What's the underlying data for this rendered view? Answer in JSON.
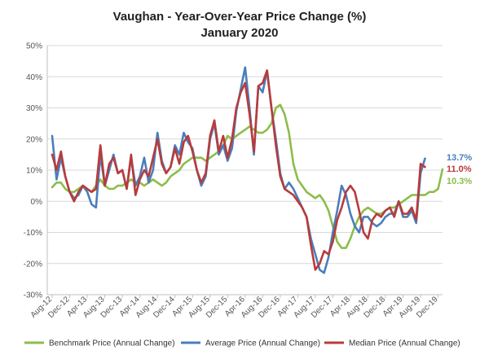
{
  "chart_data": {
    "type": "line",
    "title": "Vaughan - Year-Over-Year Price Change (%)",
    "subtitle": "January 2020",
    "xlabel": "",
    "ylabel": "",
    "ylim": [
      -30,
      50
    ],
    "y_ticks": [
      "-30%",
      "-20%",
      "-10%",
      "0%",
      "10%",
      "20%",
      "30%",
      "40%",
      "50%"
    ],
    "x_tick_labels": [
      "Aug-12",
      "Dec-12",
      "Apr-13",
      "Aug-13",
      "Dec-13",
      "Apr-14",
      "Aug-14",
      "Dec-14",
      "Apr-15",
      "Aug-15",
      "Dec-15",
      "Apr-16",
      "Aug-16",
      "Dec-16",
      "Apr-17",
      "Aug-17",
      "Dec-17",
      "Apr-18",
      "Aug-18",
      "Dec-18",
      "Apr-19",
      "Aug-19",
      "Dec-19"
    ],
    "grid": "horizontal",
    "legend_position": "bottom",
    "series": [
      {
        "name": "Benchmark Price (Annual Change)",
        "color": "#8dbd4b",
        "values": [
          4.5,
          6,
          6,
          4,
          3,
          3,
          4,
          5,
          4,
          3,
          5,
          7,
          5,
          4,
          4,
          5,
          5,
          6,
          7,
          6,
          6,
          5,
          6,
          7,
          6,
          5,
          6,
          8,
          9,
          10,
          12,
          13,
          14,
          14,
          14,
          13,
          14,
          15,
          16,
          18,
          21,
          20,
          21,
          22,
          23,
          24,
          23,
          22,
          22,
          23,
          25,
          30,
          31,
          28,
          22,
          12,
          7,
          5,
          3,
          2,
          1,
          2,
          0,
          -3,
          -8,
          -13,
          -15,
          -15,
          -12,
          -8,
          -5,
          -3,
          -2,
          -3,
          -4,
          -4,
          -3,
          -2,
          -2,
          -1,
          0,
          1,
          2,
          2,
          2,
          2,
          3,
          3,
          4,
          10.3
        ],
        "end_label": "10.3%"
      },
      {
        "name": "Average Price (Annual Change)",
        "color": "#4a7ebb",
        "values": [
          21,
          7,
          14,
          8,
          3,
          1,
          2,
          5,
          3,
          -1,
          -2,
          15,
          5,
          10,
          15,
          9,
          10,
          4,
          14,
          5,
          8,
          14,
          6,
          10,
          22,
          13,
          9,
          11,
          18,
          15,
          22,
          19,
          17,
          10,
          5,
          8,
          20,
          25,
          15,
          18,
          13,
          17,
          29,
          36,
          43,
          30,
          15,
          37,
          35,
          42,
          30,
          20,
          9,
          4,
          6,
          4,
          1,
          -2,
          -5,
          -12,
          -17,
          -22,
          -23,
          -18,
          -10,
          -3,
          5,
          2,
          -4,
          -8,
          -10,
          -5,
          -5,
          -7,
          -8,
          -7,
          -5,
          -4,
          -4,
          0,
          -5,
          -5,
          -3,
          -7,
          9,
          13.7
        ],
        "end_label": "13.7%"
      },
      {
        "name": "Median Price (Annual Change)",
        "color": "#b83b3b",
        "values": [
          15,
          10,
          16,
          8,
          3,
          0,
          3,
          5,
          4,
          3,
          4,
          18,
          5,
          12,
          14,
          9,
          10,
          4,
          15,
          2,
          7,
          10,
          8,
          14,
          20,
          12,
          9,
          11,
          17,
          12,
          19,
          21,
          16,
          10,
          6,
          9,
          21,
          26,
          16,
          21,
          14,
          20,
          30,
          35,
          38,
          28,
          16,
          37,
          38,
          42,
          30,
          18,
          8,
          4,
          3,
          2,
          0,
          -2,
          -5,
          -14,
          -22,
          -20,
          -16,
          -17,
          -13,
          -6,
          -2,
          3,
          5,
          3,
          -3,
          -10,
          -12,
          -6,
          -4,
          -5,
          -3,
          -2,
          -5,
          0,
          -4,
          -4,
          -2,
          -6,
          12,
          11.0
        ],
        "end_label": "11.0%"
      }
    ]
  }
}
